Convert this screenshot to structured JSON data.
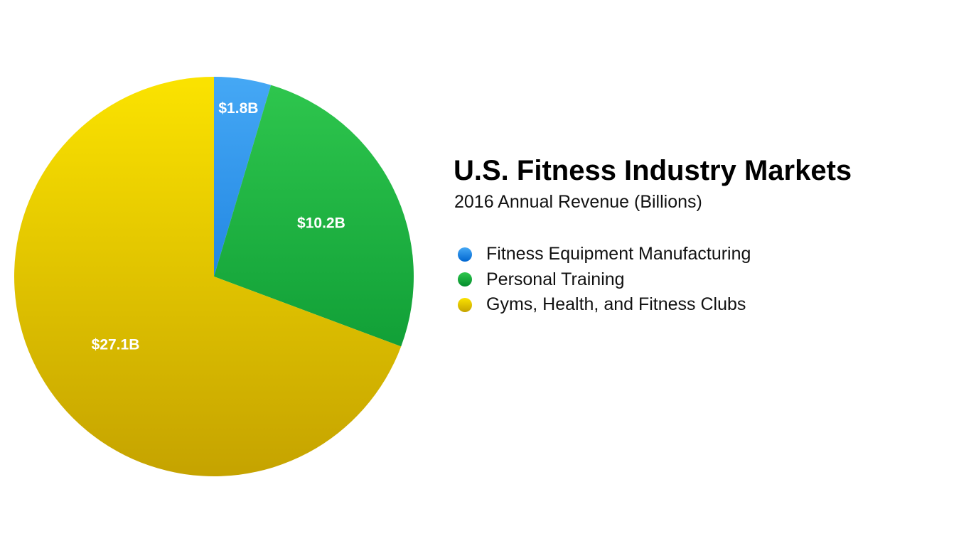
{
  "chart_data": {
    "type": "pie",
    "title": "U.S. Fitness Industry Markets",
    "subtitle": "2016 Annual Revenue (Billions)",
    "legend_position": "right",
    "slices": [
      {
        "name": "Fitness Equipment Manufacturing",
        "value": 1.8,
        "label": "$1.8B",
        "color_top": "#45a8f5",
        "color_bottom": "#0066d0"
      },
      {
        "name": "Personal Training",
        "value": 10.2,
        "label": "$10.2B",
        "color_top": "#2fc74e",
        "color_bottom": "#038d2c"
      },
      {
        "name": "Gyms, Health, and Fitness Clubs",
        "value": 27.1,
        "label": "$27.1B",
        "color_top": "#fbe300",
        "color_bottom": "#c5a300"
      }
    ]
  }
}
